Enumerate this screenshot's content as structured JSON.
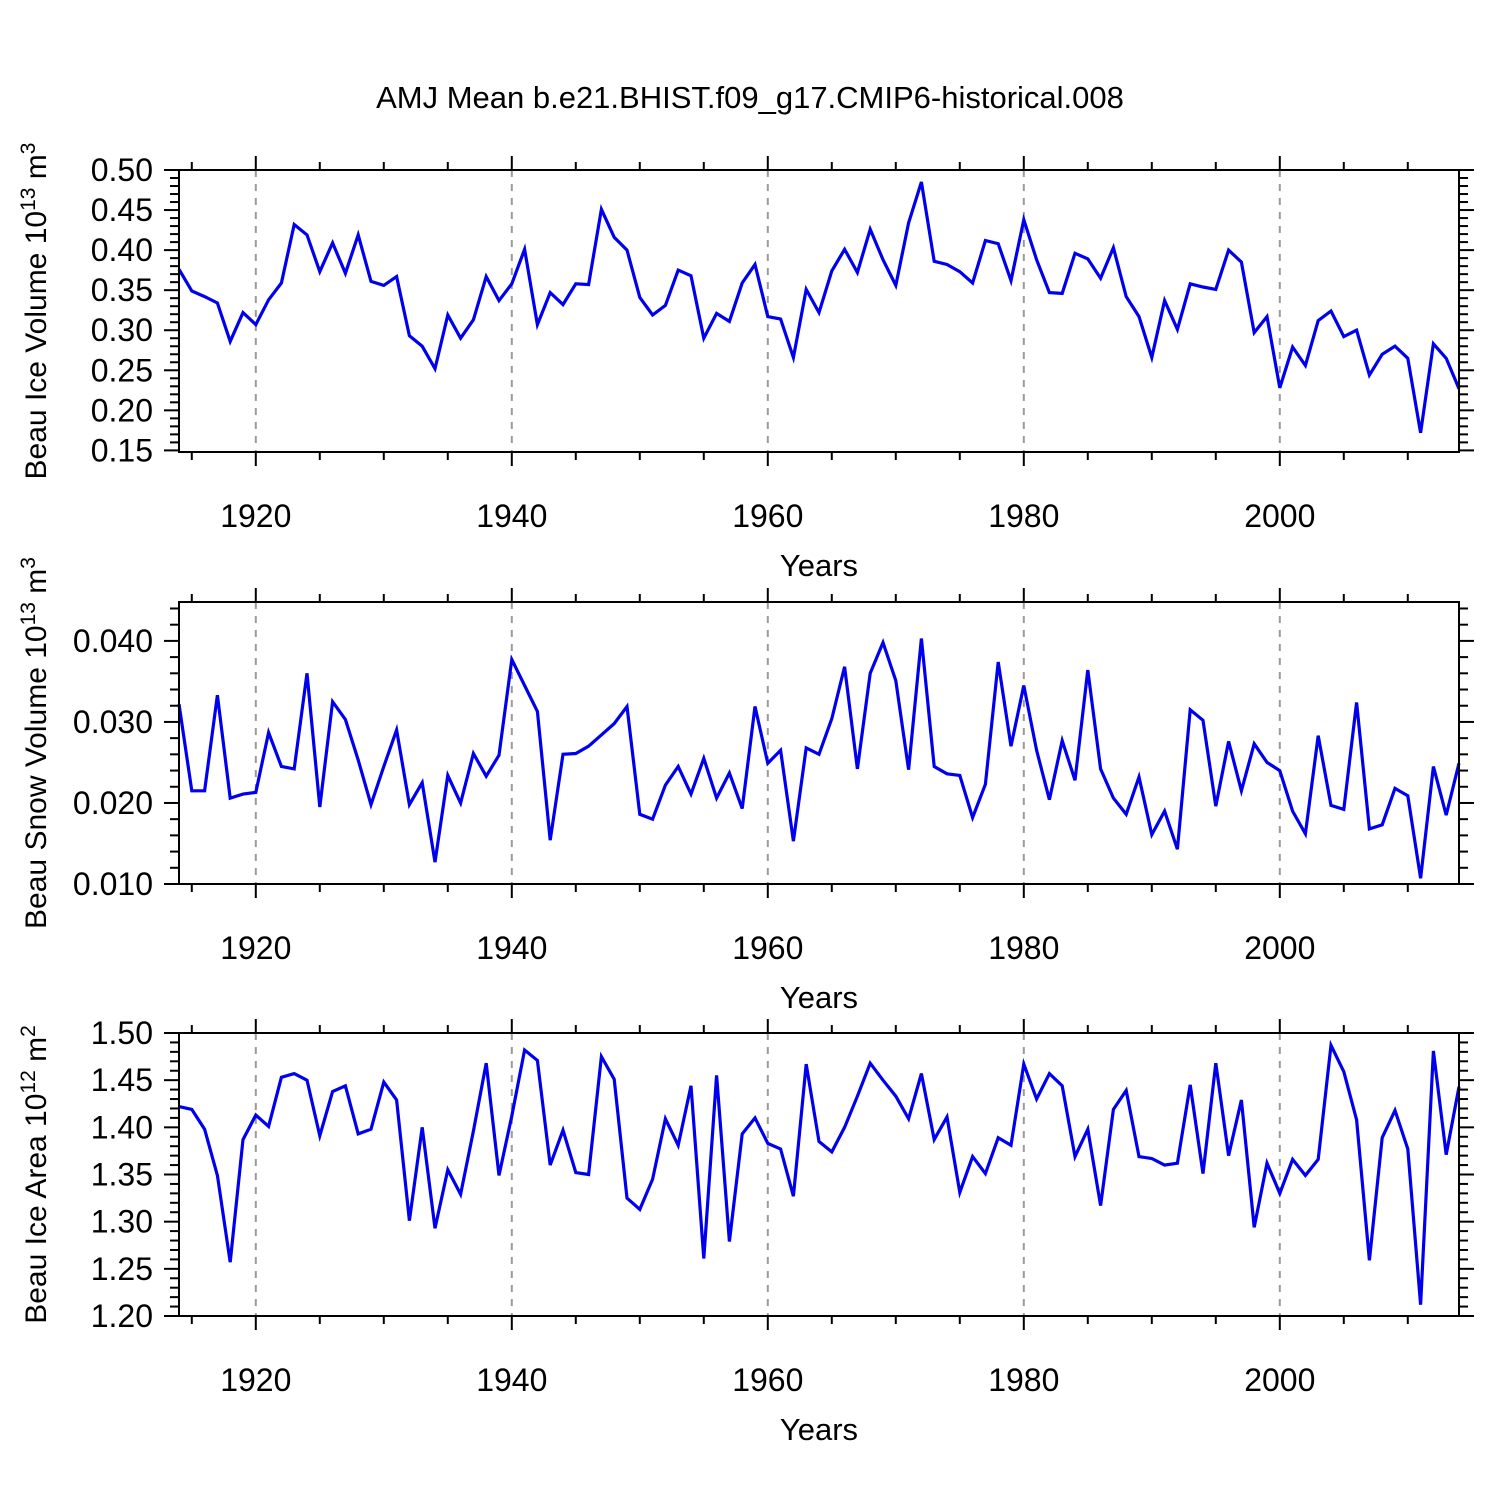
{
  "title": "AMJ Mean b.e21.BHIST.f09_g17.CMIP6-historical.008",
  "chart_data": [
    {
      "type": "line",
      "name": "beau-ice-volume",
      "xlabel": "Years",
      "ylabel": "Beau Ice Volume 10^13 m^3",
      "ylabel_parts": [
        {
          "t": "Beau Ice Volume 10",
          "sup": false
        },
        {
          "t": "13",
          "sup": true
        },
        {
          "t": " m",
          "sup": false
        },
        {
          "t": "3",
          "sup": true
        }
      ],
      "x_start": 1914,
      "x_end": 2014,
      "xticks": [
        1920,
        1940,
        1960,
        1980,
        2000
      ],
      "x_minor_step": 5,
      "ylim": [
        0.148,
        0.5
      ],
      "yticks": [
        0.15,
        0.2,
        0.25,
        0.3,
        0.35,
        0.4,
        0.45,
        0.5
      ],
      "ytick_labels": [
        "0.15",
        "0.20",
        "0.25",
        "0.30",
        "0.35",
        "0.40",
        "0.45",
        "0.50"
      ],
      "y_minor_step": 0.01,
      "grid": "vertical-dashed",
      "line_color": "#0000ee",
      "grid_color": "#9b9b9b",
      "values": [
        0.376,
        0.349,
        0.342,
        0.334,
        0.286,
        0.322,
        0.307,
        0.338,
        0.359,
        0.432,
        0.419,
        0.373,
        0.409,
        0.371,
        0.419,
        0.361,
        0.356,
        0.367,
        0.293,
        0.28,
        0.252,
        0.319,
        0.29,
        0.313,
        0.367,
        0.337,
        0.358,
        0.401,
        0.307,
        0.347,
        0.332,
        0.358,
        0.357,
        0.451,
        0.416,
        0.4,
        0.341,
        0.319,
        0.331,
        0.375,
        0.368,
        0.29,
        0.321,
        0.311,
        0.359,
        0.382,
        0.317,
        0.314,
        0.266,
        0.351,
        0.322,
        0.374,
        0.401,
        0.372,
        0.426,
        0.388,
        0.356,
        0.434,
        0.485,
        0.386,
        0.382,
        0.373,
        0.359,
        0.412,
        0.408,
        0.362,
        0.438,
        0.388,
        0.347,
        0.346,
        0.396,
        0.389,
        0.365,
        0.403,
        0.342,
        0.317,
        0.266,
        0.337,
        0.301,
        0.358,
        0.354,
        0.351,
        0.4,
        0.385,
        0.297,
        0.317,
        0.228,
        0.279,
        0.256,
        0.312,
        0.324,
        0.292,
        0.3,
        0.244,
        0.27,
        0.28,
        0.265,
        0.172,
        0.283,
        0.265,
        0.227
      ]
    },
    {
      "type": "line",
      "name": "beau-snow-volume",
      "xlabel": "Years",
      "ylabel": "Beau Snow Volume 10^13 m^3",
      "ylabel_parts": [
        {
          "t": "Beau Snow Volume 10",
          "sup": false
        },
        {
          "t": "13",
          "sup": true
        },
        {
          "t": " m",
          "sup": false
        },
        {
          "t": "3",
          "sup": true
        }
      ],
      "x_start": 1914,
      "x_end": 2014,
      "xticks": [
        1920,
        1940,
        1960,
        1980,
        2000
      ],
      "x_minor_step": 5,
      "ylim": [
        0.01,
        0.0448
      ],
      "yticks": [
        0.01,
        0.02,
        0.03,
        0.04
      ],
      "ytick_labels": [
        "0.010",
        "0.020",
        "0.030",
        "0.040"
      ],
      "y_minor_step": 0.002,
      "grid": "vertical-dashed",
      "line_color": "#0000ee",
      "grid_color": "#9b9b9b",
      "values": [
        0.0322,
        0.0215,
        0.0215,
        0.0333,
        0.0206,
        0.0211,
        0.0213,
        0.0287,
        0.0245,
        0.0242,
        0.036,
        0.0195,
        0.0325,
        0.0303,
        0.0253,
        0.0198,
        0.0245,
        0.029,
        0.0198,
        0.0225,
        0.0127,
        0.0234,
        0.02,
        0.0261,
        0.0233,
        0.0259,
        0.0377,
        0.0345,
        0.0313,
        0.0154,
        0.026,
        0.0261,
        0.027,
        0.0284,
        0.0298,
        0.0319,
        0.0186,
        0.018,
        0.0222,
        0.0245,
        0.0211,
        0.0255,
        0.0206,
        0.0237,
        0.0193,
        0.0319,
        0.0249,
        0.0265,
        0.0153,
        0.0268,
        0.026,
        0.0304,
        0.0368,
        0.0242,
        0.036,
        0.0398,
        0.0351,
        0.0241,
        0.0403,
        0.0245,
        0.0236,
        0.0234,
        0.0182,
        0.0223,
        0.0374,
        0.027,
        0.0345,
        0.0265,
        0.0204,
        0.0277,
        0.0228,
        0.0364,
        0.0242,
        0.0206,
        0.0186,
        0.0232,
        0.0161,
        0.019,
        0.0143,
        0.0315,
        0.0302,
        0.0196,
        0.0276,
        0.0215,
        0.0273,
        0.025,
        0.024,
        0.019,
        0.0162,
        0.0283,
        0.0197,
        0.0192,
        0.0324,
        0.0168,
        0.0173,
        0.0218,
        0.0209,
        0.0107,
        0.0245,
        0.0185,
        0.0249
      ]
    },
    {
      "type": "line",
      "name": "beau-ice-area",
      "xlabel": "Years",
      "ylabel": "Beau Ice Area 10^12 m^2",
      "ylabel_parts": [
        {
          "t": "Beau Ice Area 10",
          "sup": false
        },
        {
          "t": "12",
          "sup": true
        },
        {
          "t": " m",
          "sup": false
        },
        {
          "t": "2",
          "sup": true
        }
      ],
      "x_start": 1914,
      "x_end": 2014,
      "xticks": [
        1920,
        1940,
        1960,
        1980,
        2000
      ],
      "x_minor_step": 5,
      "ylim": [
        1.2,
        1.5
      ],
      "yticks": [
        1.2,
        1.25,
        1.3,
        1.35,
        1.4,
        1.45,
        1.5
      ],
      "ytick_labels": [
        "1.20",
        "1.25",
        "1.30",
        "1.35",
        "1.40",
        "1.45",
        "1.50"
      ],
      "y_minor_step": 0.01,
      "grid": "vertical-dashed",
      "line_color": "#0000ee",
      "grid_color": "#9b9b9b",
      "values": [
        1.422,
        1.419,
        1.398,
        1.349,
        1.257,
        1.387,
        1.413,
        1.401,
        1.453,
        1.457,
        1.45,
        1.391,
        1.438,
        1.444,
        1.393,
        1.398,
        1.448,
        1.429,
        1.301,
        1.4,
        1.293,
        1.355,
        1.329,
        1.396,
        1.468,
        1.349,
        1.412,
        1.482,
        1.471,
        1.36,
        1.397,
        1.352,
        1.35,
        1.475,
        1.451,
        1.325,
        1.313,
        1.345,
        1.409,
        1.381,
        1.444,
        1.261,
        1.455,
        1.279,
        1.393,
        1.41,
        1.383,
        1.377,
        1.327,
        1.467,
        1.385,
        1.374,
        1.4,
        1.433,
        1.468,
        1.45,
        1.433,
        1.409,
        1.457,
        1.387,
        1.411,
        1.331,
        1.369,
        1.351,
        1.389,
        1.381,
        1.467,
        1.43,
        1.457,
        1.444,
        1.369,
        1.398,
        1.317,
        1.419,
        1.439,
        1.369,
        1.367,
        1.36,
        1.362,
        1.445,
        1.351,
        1.468,
        1.37,
        1.429,
        1.294,
        1.362,
        1.33,
        1.366,
        1.349,
        1.366,
        1.487,
        1.459,
        1.408,
        1.259,
        1.389,
        1.418,
        1.377,
        1.212,
        1.481,
        1.371,
        1.443
      ]
    }
  ]
}
